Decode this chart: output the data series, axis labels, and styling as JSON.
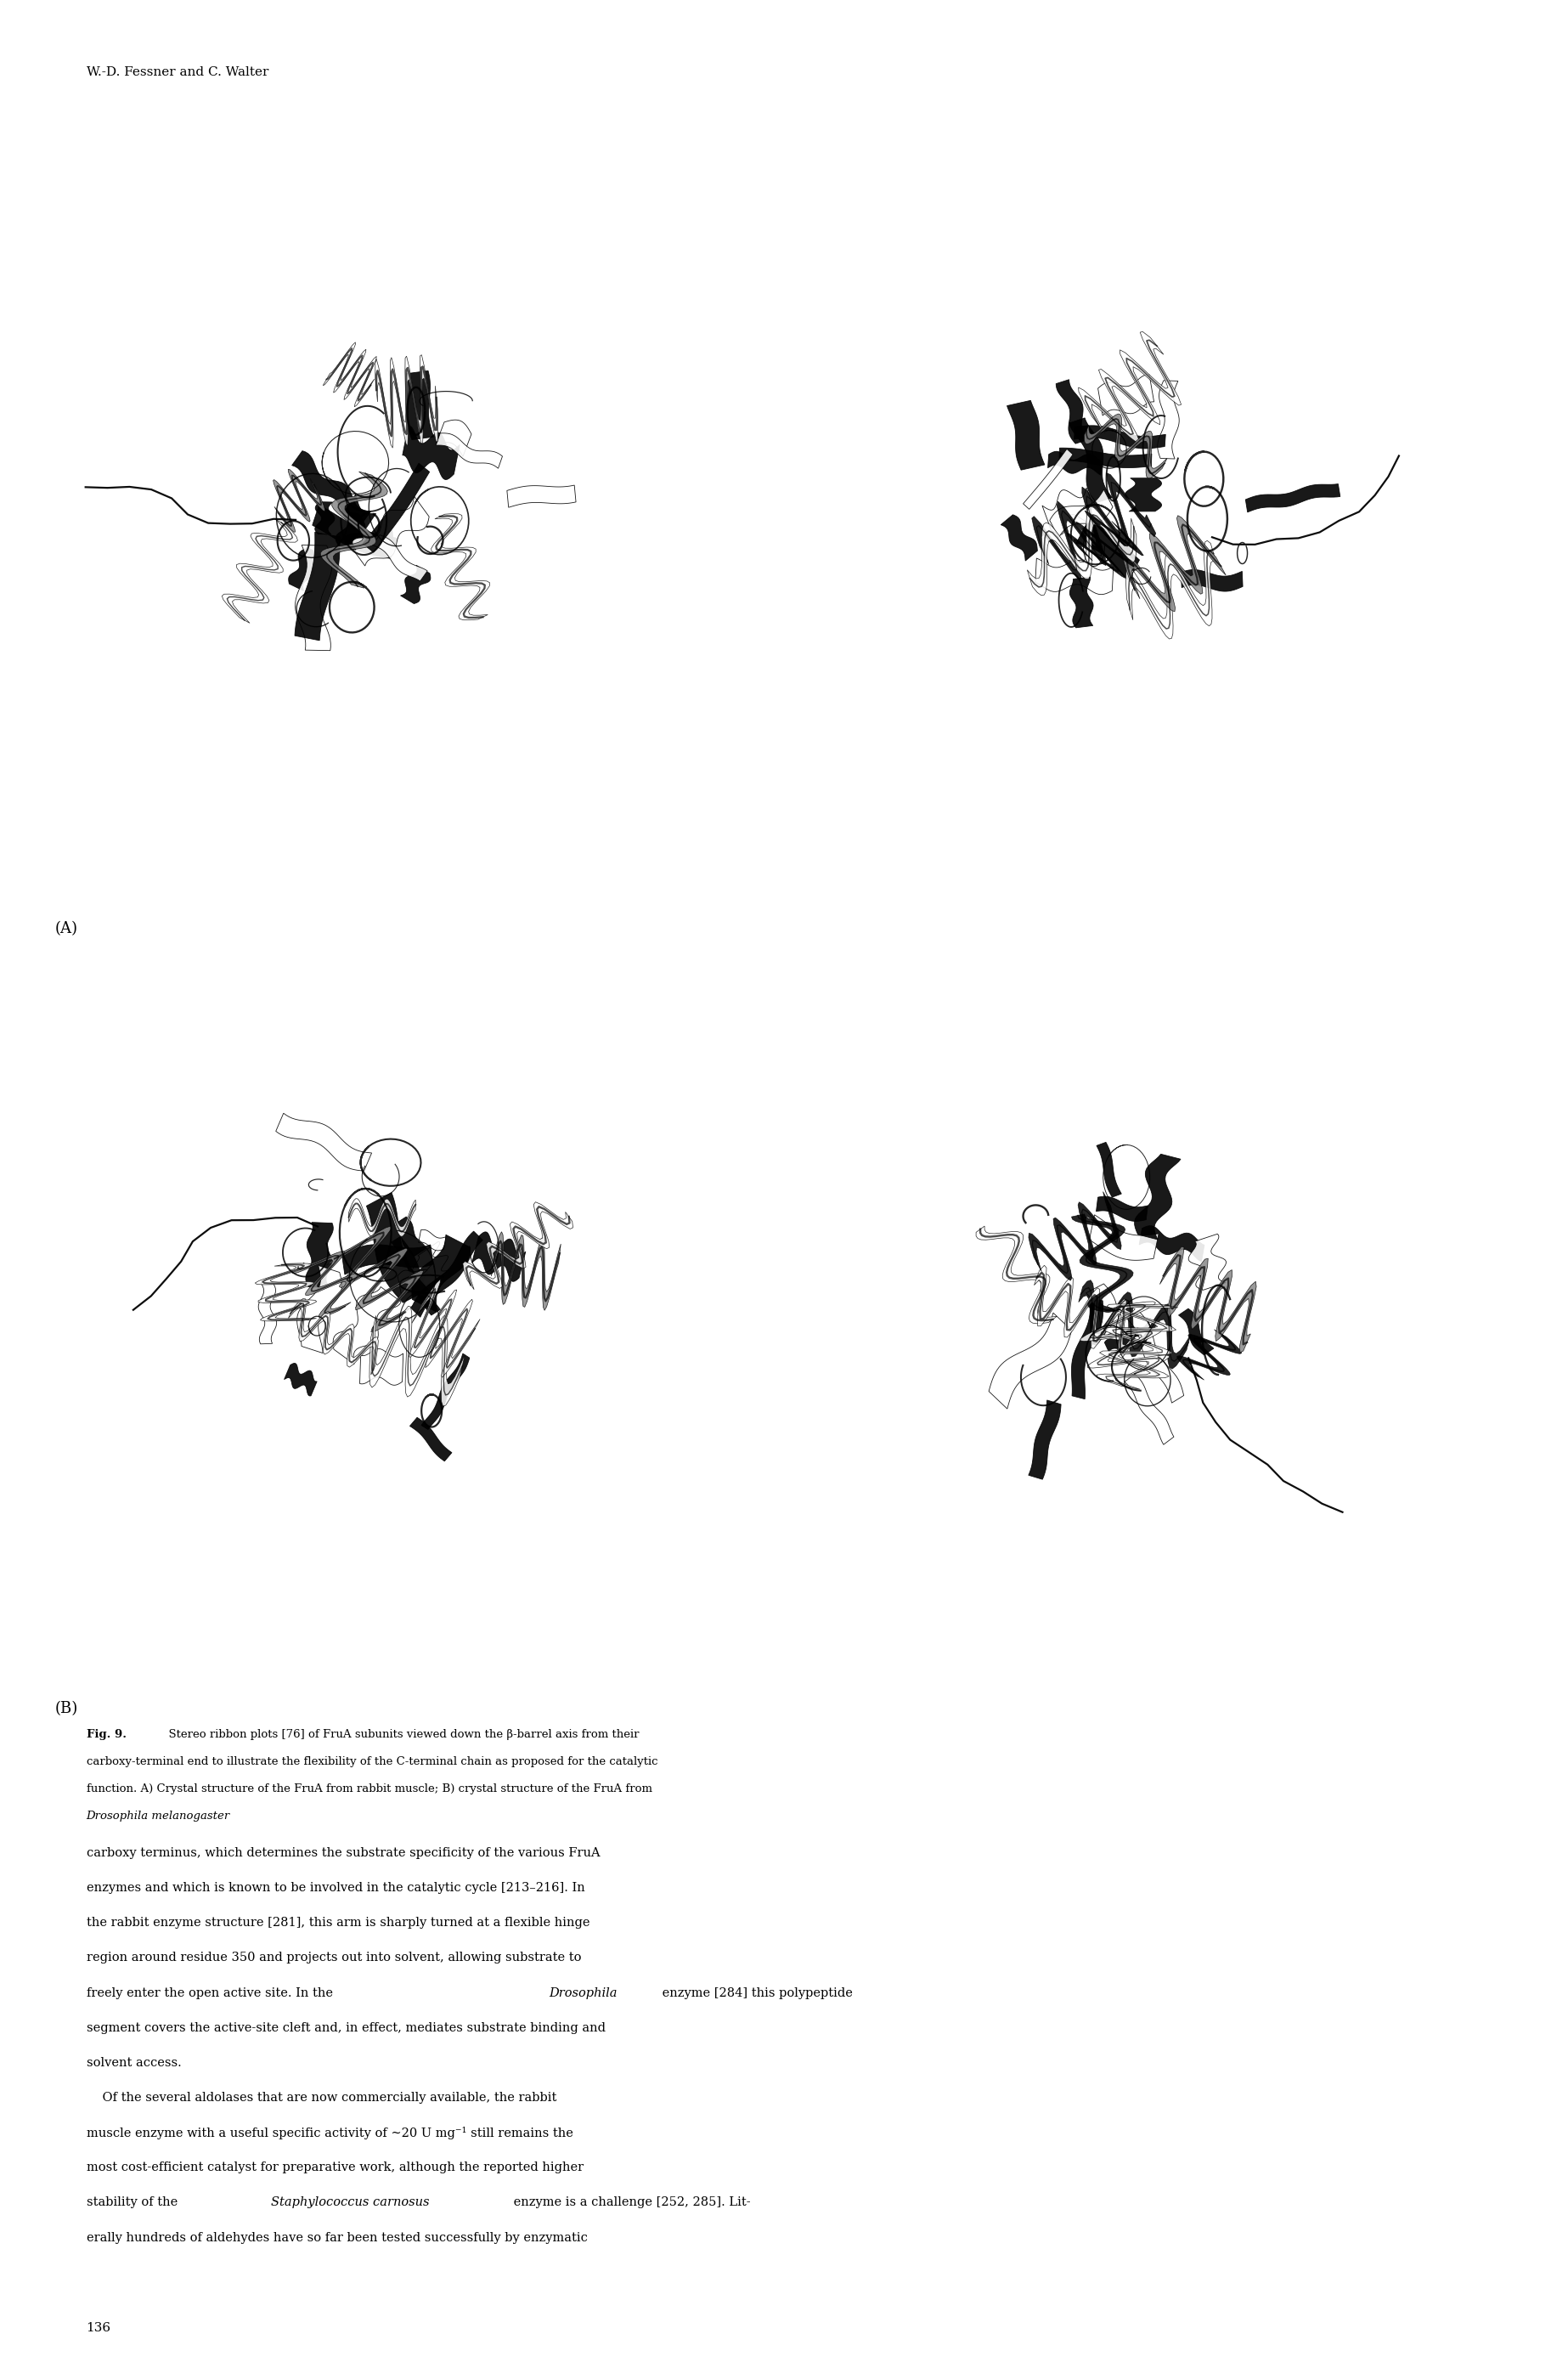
{
  "header": "W.-D. Fessner and C. Walter",
  "label_A": "(A)",
  "label_B": "(B)",
  "page_number": "136",
  "bg_color": "#ffffff",
  "text_color": "#000000",
  "caption_line1": "Fig. 9.  Stereo ribbon plots [76] of FruA subunits viewed down the β-barrel axis from their",
  "caption_line2": "carboxy-terminal end to illustrate the flexibility of the C-terminal chain as proposed for the catalytic",
  "caption_line3": "function. A) Crystal structure of the FruA from rabbit muscle; B) crystal structure of the FruA from",
  "caption_line4": "Drosophila melanogaster",
  "body1_line1": "carboxy terminus, which determines the substrate specificity of the various FruA",
  "body1_line2": "enzymes and which is known to be involved in the catalytic cycle [213–216]. In",
  "body1_line3": "the rabbit enzyme structure [281], this arm is sharply turned at a flexible hinge",
  "body1_line4": "region around residue 350 and projects out into solvent, allowing substrate to",
  "body1_line5": "freely enter the open active site. In the Drosophila enzyme [284] this polypeptide",
  "body1_line6": "segment covers the active-site cleft and, in effect, mediates substrate binding and",
  "body1_line7": "solvent access.",
  "body2_line1": "    Of the several aldolases that are now commercially available, the rabbit",
  "body2_line2": "muscle enzyme with a useful specific activity of ∼20 U mg⁻¹ still remains the",
  "body2_line3": "most cost-efficient catalyst for preparative work, although the reported higher",
  "body2_line4": "stability of the Staphylococcus carnosus enzyme is a challenge [252, 285]. Lit-",
  "body2_line5": "erally hundreds of aldehydes have so far been tested successfully by enzymatic",
  "seeds": [
    42,
    123,
    77,
    200
  ]
}
